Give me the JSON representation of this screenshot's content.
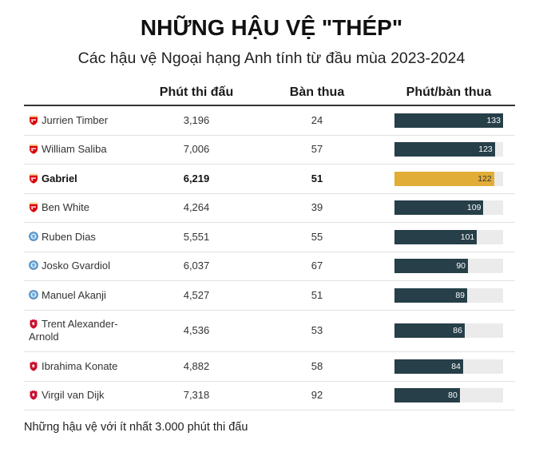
{
  "colors": {
    "bar": "#263f49",
    "highlight_bar": "#e2ad36",
    "track": "#ebebeb"
  },
  "chart_data": {
    "type": "table",
    "title": "NHỮNG HẬU VỆ \"THÉP\"",
    "subtitle": "Các hậu vệ Ngoại hạng Anh tính từ đầu mùa 2023-2024",
    "note": "Những hậu vệ với ít nhất 3.000 phút thi đấu",
    "columns": {
      "minutes": "Phút thi đấu",
      "goals_conceded": "Bàn thua",
      "minutes_per_goal": "Phút/bàn thua"
    },
    "bar_domain": [
      0,
      133
    ],
    "rows": [
      {
        "player": "Jurrien Timber",
        "club_icon": "arsenal-crest-icon",
        "minutes": 3196,
        "goals_conceded": 24,
        "minutes_per_goal": 133
      },
      {
        "player": "William Saliba",
        "club_icon": "arsenal-crest-icon",
        "minutes": 7006,
        "goals_conceded": 57,
        "minutes_per_goal": 123
      },
      {
        "player": "Gabriel",
        "club_icon": "arsenal-crest-icon",
        "minutes": 6219,
        "goals_conceded": 51,
        "minutes_per_goal": 122,
        "highlight": true
      },
      {
        "player": "Ben White",
        "club_icon": "arsenal-crest-icon",
        "minutes": 4264,
        "goals_conceded": 39,
        "minutes_per_goal": 109
      },
      {
        "player": "Ruben Dias",
        "club_icon": "man-city-crest-icon",
        "minutes": 5551,
        "goals_conceded": 55,
        "minutes_per_goal": 101
      },
      {
        "player": "Josko Gvardiol",
        "club_icon": "man-city-crest-icon",
        "minutes": 6037,
        "goals_conceded": 67,
        "minutes_per_goal": 90
      },
      {
        "player": "Manuel Akanji",
        "club_icon": "man-city-crest-icon",
        "minutes": 4527,
        "goals_conceded": 51,
        "minutes_per_goal": 89
      },
      {
        "player": "Trent Alexander-Arnold",
        "club_icon": "liverpool-crest-icon",
        "minutes": 4536,
        "goals_conceded": 53,
        "minutes_per_goal": 86
      },
      {
        "player": "Ibrahima Konate",
        "club_icon": "liverpool-crest-icon",
        "minutes": 4882,
        "goals_conceded": 58,
        "minutes_per_goal": 84
      },
      {
        "player": "Virgil van Dijk",
        "club_icon": "liverpool-crest-icon",
        "minutes": 7318,
        "goals_conceded": 92,
        "minutes_per_goal": 80
      }
    ]
  }
}
